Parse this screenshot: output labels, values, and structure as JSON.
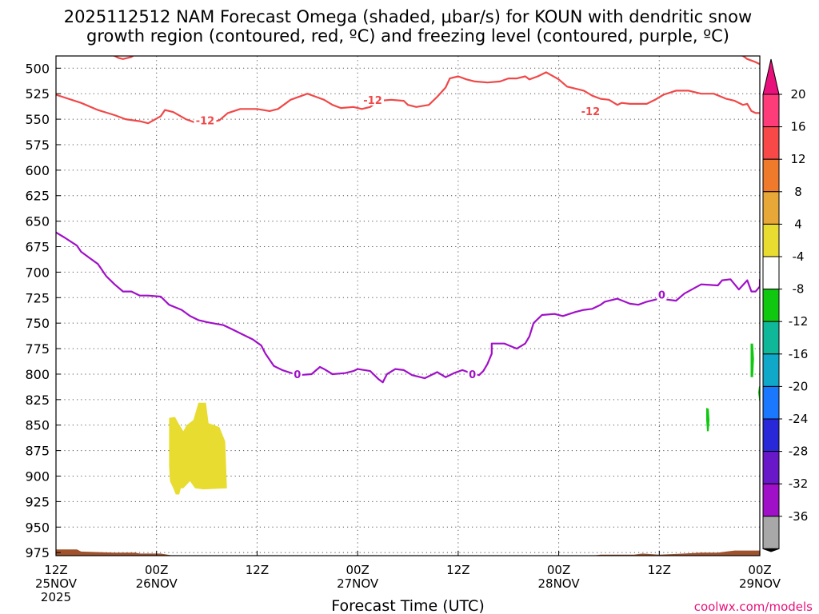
{
  "chart_data": {
    "type": "time-height",
    "title_lines": [
      "2025112512 NAM Forecast Omega (shaded, μbar/s) for KOUN with dendritic snow",
      "growth region (contoured, red, ºC) and freezing level (contoured, purple, ºC)"
    ],
    "xlabel": "Forecast Time (UTC)",
    "credit": "coolwx.com/models",
    "xlim": [
      0,
      84
    ],
    "ylim_hpa": [
      978,
      488
    ],
    "x_ticks": [
      {
        "t": 0,
        "lines": [
          "12Z",
          "25NOV",
          "2025"
        ]
      },
      {
        "t": 12,
        "lines": [
          "00Z",
          "26NOV"
        ]
      },
      {
        "t": 24,
        "lines": [
          "12Z"
        ]
      },
      {
        "t": 36,
        "lines": [
          "00Z",
          "27NOV"
        ]
      },
      {
        "t": 48,
        "lines": [
          "12Z"
        ]
      },
      {
        "t": 60,
        "lines": [
          "00Z",
          "28NOV"
        ]
      },
      {
        "t": 72,
        "lines": [
          "12Z"
        ]
      },
      {
        "t": 84,
        "lines": [
          "00Z",
          "29NOV"
        ]
      }
    ],
    "y_ticks": [
      500,
      525,
      550,
      575,
      600,
      625,
      650,
      675,
      700,
      725,
      750,
      775,
      800,
      825,
      850,
      875,
      900,
      925,
      950,
      975
    ],
    "grid": true,
    "colorbar": {
      "labels": [
        "20",
        "16",
        "12",
        "8",
        "4",
        "-4",
        "-8",
        "-12",
        "-16",
        "-20",
        "-24",
        "-28",
        "-32",
        "-36"
      ],
      "colors": [
        "#ff3c7a",
        "#f84848",
        "#f07a2c",
        "#e8a838",
        "#e8dc30",
        "#ffffff",
        "#10c810",
        "#10b89a",
        "#10a8c8",
        "#1a78ff",
        "#2828d8",
        "#6818c8",
        "#a010c8",
        "#a8a8a8"
      ],
      "top_arrow_color": "#e8107a",
      "bottom_arrow_color": "#000000"
    },
    "series": [
      {
        "name": "dendritic snow growth region (-12 ºC)",
        "color": "#f04848",
        "label": "-12",
        "label_positions": [
          [
            17.8,
            551
          ],
          [
            37.8,
            531
          ],
          [
            63.8,
            542
          ]
        ],
        "points": [
          [
            0,
            526
          ],
          [
            3,
            534
          ],
          [
            5,
            541
          ],
          [
            7,
            546
          ],
          [
            8.3,
            550
          ],
          [
            10,
            552
          ],
          [
            11,
            554
          ],
          [
            12.5,
            547
          ],
          [
            13,
            541
          ],
          [
            14,
            543
          ],
          [
            15.5,
            550
          ],
          [
            16.5,
            553
          ],
          [
            17.5,
            549
          ],
          [
            18.5,
            553
          ],
          [
            19.5,
            551
          ],
          [
            20.5,
            544
          ],
          [
            22,
            540
          ],
          [
            24,
            540
          ],
          [
            25.5,
            542
          ],
          [
            26.5,
            540
          ],
          [
            27.5,
            534
          ],
          [
            28,
            531
          ],
          [
            30,
            525
          ],
          [
            31,
            528
          ],
          [
            32,
            531
          ],
          [
            33,
            536
          ],
          [
            34,
            539
          ],
          [
            35.5,
            538
          ],
          [
            36.5,
            540
          ],
          [
            37.5,
            538
          ],
          [
            38.5,
            532
          ],
          [
            40,
            531
          ],
          [
            41.5,
            532
          ],
          [
            42,
            536
          ],
          [
            43,
            538
          ],
          [
            44.5,
            536
          ],
          [
            45.5,
            528
          ],
          [
            46.5,
            519
          ],
          [
            47,
            510
          ],
          [
            48,
            508
          ],
          [
            49,
            511
          ],
          [
            50,
            513
          ],
          [
            51.5,
            514
          ],
          [
            53,
            513
          ],
          [
            54,
            510
          ],
          [
            55,
            510
          ],
          [
            56,
            508
          ],
          [
            56.5,
            511
          ],
          [
            57.5,
            508
          ],
          [
            58.5,
            504
          ],
          [
            60,
            511
          ],
          [
            61,
            518
          ],
          [
            63,
            522
          ],
          [
            64,
            527
          ],
          [
            65,
            530
          ],
          [
            66,
            531
          ],
          [
            67,
            536
          ],
          [
            67.5,
            534
          ],
          [
            68.5,
            535
          ],
          [
            70.5,
            535
          ],
          [
            71.5,
            531
          ],
          [
            72.5,
            526
          ],
          [
            74,
            522
          ],
          [
            75.5,
            522
          ],
          [
            77,
            525
          ],
          [
            78.5,
            525
          ],
          [
            80,
            530
          ],
          [
            81,
            532
          ],
          [
            82,
            536
          ],
          [
            82.5,
            535
          ],
          [
            83,
            542
          ],
          [
            83.5,
            544
          ],
          [
            84,
            544
          ]
        ]
      },
      {
        "name": "dendritic snow growth region (-12 ºC) top segment",
        "color": "#f04848",
        "label": "",
        "label_positions": [],
        "points": [
          [
            6.5,
            486
          ],
          [
            7.5,
            490
          ],
          [
            8,
            491
          ],
          [
            9,
            489
          ],
          [
            9.5,
            486
          ]
        ]
      },
      {
        "name": "dendritic snow growth region (-12 ºC) right segment",
        "color": "#f04848",
        "label": "",
        "label_positions": [],
        "points": [
          [
            81.5,
            486
          ],
          [
            82,
            488
          ],
          [
            82.5,
            491
          ],
          [
            83.5,
            494
          ],
          [
            84,
            496
          ]
        ]
      },
      {
        "name": "freezing level (0 ºC)",
        "color": "#a010c8",
        "label": "0",
        "label_positions": [
          [
            28.8,
            800
          ],
          [
            49.7,
            800
          ],
          [
            72.3,
            722
          ]
        ],
        "points": [
          [
            0,
            661
          ],
          [
            1,
            666
          ],
          [
            2.5,
            674
          ],
          [
            3,
            680
          ],
          [
            4,
            686
          ],
          [
            5,
            692
          ],
          [
            6,
            704
          ],
          [
            7,
            712
          ],
          [
            8,
            719
          ],
          [
            9,
            719
          ],
          [
            10,
            723
          ],
          [
            11,
            723
          ],
          [
            12.5,
            724
          ],
          [
            13.5,
            732
          ],
          [
            15,
            737
          ],
          [
            16,
            743
          ],
          [
            17,
            747
          ],
          [
            18,
            749
          ],
          [
            20,
            752
          ],
          [
            21,
            756
          ],
          [
            22.5,
            762
          ],
          [
            23.5,
            766
          ],
          [
            24.5,
            772
          ],
          [
            25,
            780
          ],
          [
            26,
            792
          ],
          [
            27,
            796
          ],
          [
            28.5,
            800
          ],
          [
            29,
            801
          ],
          [
            30.5,
            800
          ],
          [
            31.5,
            793
          ],
          [
            32,
            795
          ],
          [
            33,
            800
          ],
          [
            34.5,
            799
          ],
          [
            35.5,
            797
          ],
          [
            36,
            795
          ],
          [
            37.5,
            797
          ],
          [
            38.5,
            805
          ],
          [
            39,
            808
          ],
          [
            39.5,
            800
          ],
          [
            40.5,
            795
          ],
          [
            41.5,
            796
          ],
          [
            42.5,
            801
          ],
          [
            44,
            804
          ],
          [
            45,
            800
          ],
          [
            45.5,
            798
          ],
          [
            46.5,
            803
          ],
          [
            47.5,
            799
          ],
          [
            48.5,
            796
          ],
          [
            49.5,
            799
          ],
          [
            50.5,
            801
          ],
          [
            51,
            797
          ],
          [
            51.5,
            790
          ],
          [
            52,
            780
          ],
          [
            52,
            770
          ],
          [
            53.5,
            770
          ],
          [
            55,
            775
          ],
          [
            56,
            770
          ],
          [
            56.5,
            763
          ],
          [
            57,
            750
          ],
          [
            58,
            742
          ],
          [
            59.5,
            741
          ],
          [
            60.5,
            743
          ],
          [
            62,
            739
          ],
          [
            63,
            737
          ],
          [
            64,
            736
          ],
          [
            65,
            732
          ],
          [
            65.5,
            729
          ],
          [
            67,
            726
          ],
          [
            68.5,
            731
          ],
          [
            69.5,
            732
          ],
          [
            70.5,
            729
          ],
          [
            72,
            726
          ],
          [
            73,
            727
          ],
          [
            74,
            728
          ],
          [
            75,
            721
          ],
          [
            77,
            712
          ],
          [
            79,
            713
          ],
          [
            79.5,
            708
          ],
          [
            80.5,
            707
          ],
          [
            81.5,
            717
          ],
          [
            82.5,
            708
          ],
          [
            83,
            719
          ],
          [
            83.5,
            719
          ],
          [
            84,
            714
          ],
          [
            84,
            707
          ]
        ]
      }
    ],
    "shaded_regions": [
      {
        "value_range": [
          4,
          8
        ],
        "color": "#e8dc30",
        "polygon": [
          [
            13.5,
            843
          ],
          [
            14.2,
            842
          ],
          [
            14.6,
            848
          ],
          [
            15.2,
            856
          ],
          [
            15.6,
            850
          ],
          [
            16.4,
            845
          ],
          [
            17.0,
            828
          ],
          [
            17.9,
            828
          ],
          [
            18.2,
            848
          ],
          [
            19.5,
            852
          ],
          [
            20.2,
            866
          ],
          [
            20.4,
            912
          ],
          [
            17.6,
            913
          ],
          [
            16.6,
            912
          ],
          [
            16.0,
            905
          ],
          [
            15.2,
            912
          ],
          [
            14.9,
            912
          ],
          [
            14.7,
            918
          ],
          [
            14.3,
            918
          ],
          [
            14.0,
            912
          ],
          [
            13.6,
            905
          ],
          [
            13.5,
            890
          ],
          [
            13.5,
            860
          ]
        ]
      },
      {
        "value_range": [
          -8,
          -4
        ],
        "color": "#10c810",
        "polygon": [
          [
            82.9,
            770
          ],
          [
            83.2,
            770
          ],
          [
            83.3,
            785
          ],
          [
            83.2,
            803
          ],
          [
            82.9,
            803
          ],
          [
            82.9,
            790
          ]
        ]
      },
      {
        "value_range": [
          -8,
          -4
        ],
        "color": "#10c810",
        "polygon": [
          [
            83.9,
            812
          ],
          [
            84.4,
            812
          ],
          [
            84.4,
            835
          ],
          [
            84.2,
            840
          ],
          [
            84.0,
            830
          ],
          [
            83.8,
            818
          ]
        ]
      },
      {
        "value_range": [
          -8,
          -4
        ],
        "color": "#10c810",
        "polygon": [
          [
            77.6,
            833
          ],
          [
            77.9,
            834
          ],
          [
            78.0,
            845
          ],
          [
            77.9,
            856
          ],
          [
            77.7,
            856
          ],
          [
            77.6,
            845
          ]
        ]
      }
    ],
    "terrain": {
      "color": "#a0522d",
      "top_hpa": [
        [
          0,
          972
        ],
        [
          2.5,
          972
        ],
        [
          3,
          974
        ],
        [
          7,
          975
        ],
        [
          9.5,
          975
        ],
        [
          10,
          976
        ],
        [
          12.5,
          976
        ],
        [
          14,
          978
        ],
        [
          18,
          978
        ],
        [
          21,
          980
        ],
        [
          24,
          980
        ],
        [
          25,
          981
        ],
        [
          27,
          983
        ],
        [
          29,
          983
        ],
        [
          30,
          981
        ],
        [
          31,
          980
        ],
        [
          33,
          979
        ],
        [
          35,
          978
        ],
        [
          44,
          978
        ],
        [
          45,
          979
        ],
        [
          54,
          979
        ],
        [
          55,
          978
        ],
        [
          64,
          978
        ],
        [
          65,
          977
        ],
        [
          69,
          977
        ],
        [
          70,
          976
        ],
        [
          72,
          977
        ],
        [
          75,
          976
        ],
        [
          77,
          975
        ],
        [
          79,
          975
        ],
        [
          80,
          974
        ],
        [
          81,
          973
        ],
        [
          84,
          973
        ]
      ]
    }
  }
}
